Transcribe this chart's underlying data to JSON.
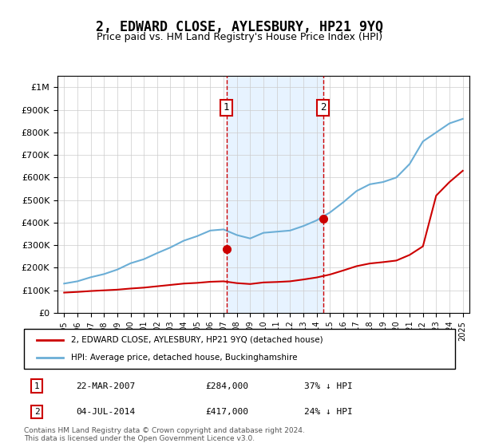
{
  "title": "2, EDWARD CLOSE, AYLESBURY, HP21 9YQ",
  "subtitle": "Price paid vs. HM Land Registry's House Price Index (HPI)",
  "years": [
    1995,
    1996,
    1997,
    1998,
    1999,
    2000,
    2001,
    2002,
    2003,
    2004,
    2005,
    2006,
    2007,
    2008,
    2009,
    2010,
    2011,
    2012,
    2013,
    2014,
    2015,
    2016,
    2017,
    2018,
    2019,
    2020,
    2021,
    2022,
    2023,
    2024,
    2025
  ],
  "hpi_values": [
    130000,
    140000,
    158000,
    172000,
    192000,
    220000,
    238000,
    265000,
    290000,
    320000,
    340000,
    365000,
    370000,
    345000,
    330000,
    355000,
    360000,
    365000,
    385000,
    410000,
    445000,
    490000,
    540000,
    570000,
    580000,
    600000,
    660000,
    760000,
    800000,
    840000,
    860000
  ],
  "red_values": [
    90000,
    93000,
    97000,
    100000,
    103000,
    108000,
    112000,
    118000,
    124000,
    130000,
    133000,
    138000,
    140000,
    132000,
    128000,
    135000,
    137000,
    140000,
    148000,
    157000,
    170000,
    188000,
    207000,
    219000,
    225000,
    232000,
    257000,
    295000,
    520000,
    580000,
    630000
  ],
  "sale1_year": 2007.22,
  "sale1_value": 284000,
  "sale2_year": 2014.5,
  "sale2_value": 417000,
  "sale1_label": "1",
  "sale2_label": "2",
  "hpi_color": "#6baed6",
  "red_color": "#cc0000",
  "sale_color": "#cc0000",
  "marker_color": "#cc0000",
  "vline_color": "#cc0000",
  "bg_rect_color": "#ddeeff",
  "ylim": [
    0,
    1050000
  ],
  "yticks": [
    0,
    100000,
    200000,
    300000,
    400000,
    500000,
    600000,
    700000,
    800000,
    900000,
    1000000
  ],
  "ytick_labels": [
    "£0",
    "£100K",
    "£200K",
    "£300K",
    "£400K",
    "£500K",
    "£600K",
    "£700K",
    "£800K",
    "£900K",
    "£1M"
  ],
  "legend_red_label": "2, EDWARD CLOSE, AYLESBURY, HP21 9YQ (detached house)",
  "legend_blue_label": "HPI: Average price, detached house, Buckinghamshire",
  "table_rows": [
    {
      "num": "1",
      "date": "22-MAR-2007",
      "price": "£284,000",
      "note": "37% ↓ HPI"
    },
    {
      "num": "2",
      "date": "04-JUL-2014",
      "price": "£417,000",
      "note": "24% ↓ HPI"
    }
  ],
  "footnote": "Contains HM Land Registry data © Crown copyright and database right 2024.\nThis data is licensed under the Open Government Licence v3.0."
}
